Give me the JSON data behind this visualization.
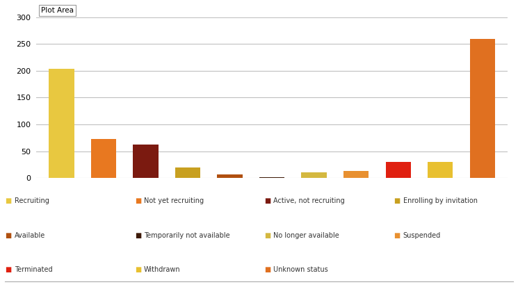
{
  "categories": [
    "Recruiting",
    "Not yet recruiting",
    "Active, not recruiting",
    "Enrolling by invitation",
    "Available",
    "Temporarily not available",
    "No longer available",
    "Suspended",
    "Terminated",
    "Withdrawn",
    "Unknown status"
  ],
  "values": [
    204,
    73,
    62,
    20,
    6,
    2,
    11,
    13,
    30,
    30,
    259
  ],
  "bar_colors": [
    "#E8C840",
    "#E87820",
    "#7B1A10",
    "#C8A020",
    "#B05010",
    "#3D1A08",
    "#D4B840",
    "#E89030",
    "#E02010",
    "#E8C030",
    "#E07020"
  ],
  "legend_labels": [
    "Recruiting",
    "Not yet recruiting",
    "Active, not recruiting",
    "Enrolling by invitation",
    "Available",
    "Temporarily not available",
    "No longer available",
    "Suspended",
    "Terminated",
    "Withdrawn",
    "Unknown status"
  ],
  "legend_colors": [
    "#E8C840",
    "#E87820",
    "#7B1A10",
    "#C8A020",
    "#B05010",
    "#3D1A08",
    "#D4B840",
    "#E89030",
    "#E02010",
    "#E8C030",
    "#E07020"
  ],
  "ylim": [
    0,
    300
  ],
  "yticks": [
    0,
    50,
    100,
    150,
    200,
    250,
    300
  ],
  "plot_area_label": "Plot Area",
  "background_color": "#FFFFFF",
  "grid_color": "#C0C0C0"
}
